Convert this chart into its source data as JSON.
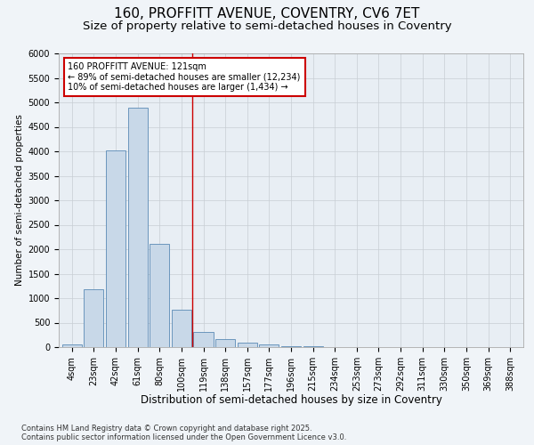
{
  "title": "160, PROFFITT AVENUE, COVENTRY, CV6 7ET",
  "subtitle": "Size of property relative to semi-detached houses in Coventry",
  "xlabel": "Distribution of semi-detached houses by size in Coventry",
  "ylabel": "Number of semi-detached properties",
  "categories": [
    "4sqm",
    "23sqm",
    "42sqm",
    "61sqm",
    "80sqm",
    "100sqm",
    "119sqm",
    "138sqm",
    "157sqm",
    "177sqm",
    "196sqm",
    "215sqm",
    "234sqm",
    "253sqm",
    "273sqm",
    "292sqm",
    "311sqm",
    "330sqm",
    "350sqm",
    "369sqm",
    "388sqm"
  ],
  "values": [
    55,
    1180,
    4020,
    4890,
    2110,
    760,
    310,
    170,
    95,
    50,
    25,
    10,
    5,
    3,
    2,
    1,
    1,
    0,
    0,
    0,
    0
  ],
  "bar_color": "#c8d8e8",
  "bar_edge_color": "#5a8ab5",
  "vline_x_index": 5.5,
  "vline_color": "#cc0000",
  "annotation_text": "160 PROFFITT AVENUE: 121sqm\n← 89% of semi-detached houses are smaller (12,234)\n10% of semi-detached houses are larger (1,434) →",
  "annotation_box_color": "#ffffff",
  "annotation_box_edge": "#cc0000",
  "ylim": [
    0,
    6000
  ],
  "yticks": [
    0,
    500,
    1000,
    1500,
    2000,
    2500,
    3000,
    3500,
    4000,
    4500,
    5000,
    5500,
    6000
  ],
  "grid_color": "#c8cdd4",
  "bg_color": "#e8eef4",
  "fig_bg_color": "#f0f4f8",
  "footer_text": "Contains HM Land Registry data © Crown copyright and database right 2025.\nContains public sector information licensed under the Open Government Licence v3.0.",
  "title_fontsize": 11,
  "subtitle_fontsize": 9.5,
  "xlabel_fontsize": 8.5,
  "ylabel_fontsize": 7.5,
  "tick_fontsize": 7,
  "annotation_fontsize": 7,
  "footer_fontsize": 6
}
